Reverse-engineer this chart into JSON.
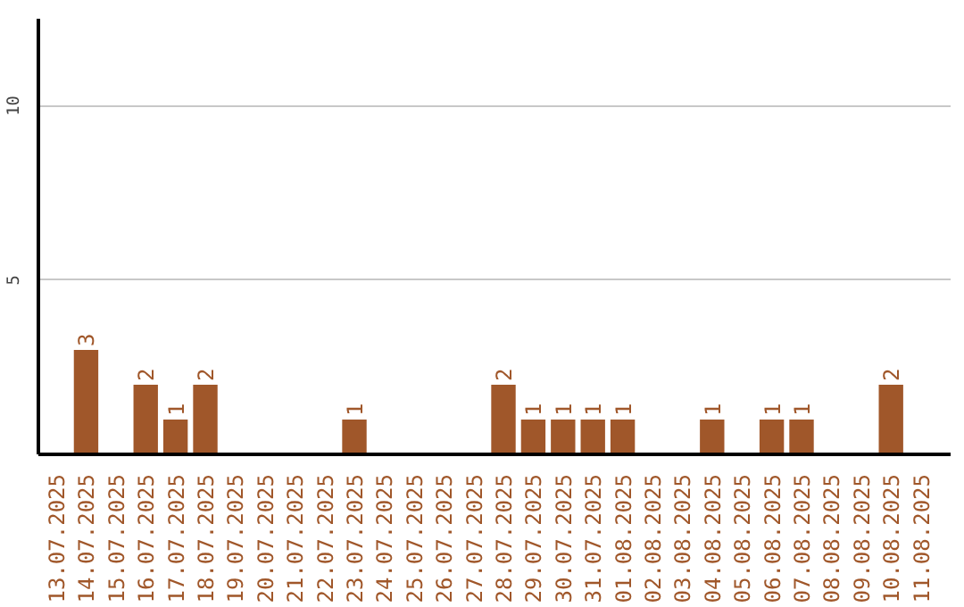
{
  "chart_data": {
    "type": "bar",
    "categories": [
      "13.07.2025",
      "14.07.2025",
      "15.07.2025",
      "16.07.2025",
      "17.07.2025",
      "18.07.2025",
      "19.07.2025",
      "20.07.2025",
      "21.07.2025",
      "22.07.2025",
      "23.07.2025",
      "24.07.2025",
      "25.07.2025",
      "26.07.2025",
      "27.07.2025",
      "28.07.2025",
      "29.07.2025",
      "30.07.2025",
      "31.07.2025",
      "01.08.2025",
      "02.08.2025",
      "03.08.2025",
      "04.08.2025",
      "05.08.2025",
      "06.08.2025",
      "07.08.2025",
      "08.08.2025",
      "09.08.2025",
      "10.08.2025",
      "11.08.2025"
    ],
    "values": [
      0,
      3,
      0,
      2,
      1,
      2,
      0,
      0,
      0,
      0,
      1,
      0,
      0,
      0,
      0,
      2,
      1,
      1,
      1,
      1,
      0,
      0,
      1,
      0,
      1,
      1,
      0,
      0,
      2,
      0
    ],
    "value_labels": [
      null,
      "3",
      null,
      "2",
      "1",
      "2",
      null,
      null,
      null,
      null,
      "1",
      null,
      null,
      null,
      null,
      "2",
      "1",
      "1",
      "1",
      "1",
      null,
      null,
      "1",
      null,
      "1",
      "1",
      null,
      null,
      "2",
      null
    ],
    "color": "#a0572a",
    "ylim": [
      0,
      12.5
    ],
    "yticks": [
      5,
      10
    ],
    "grid": "y"
  }
}
